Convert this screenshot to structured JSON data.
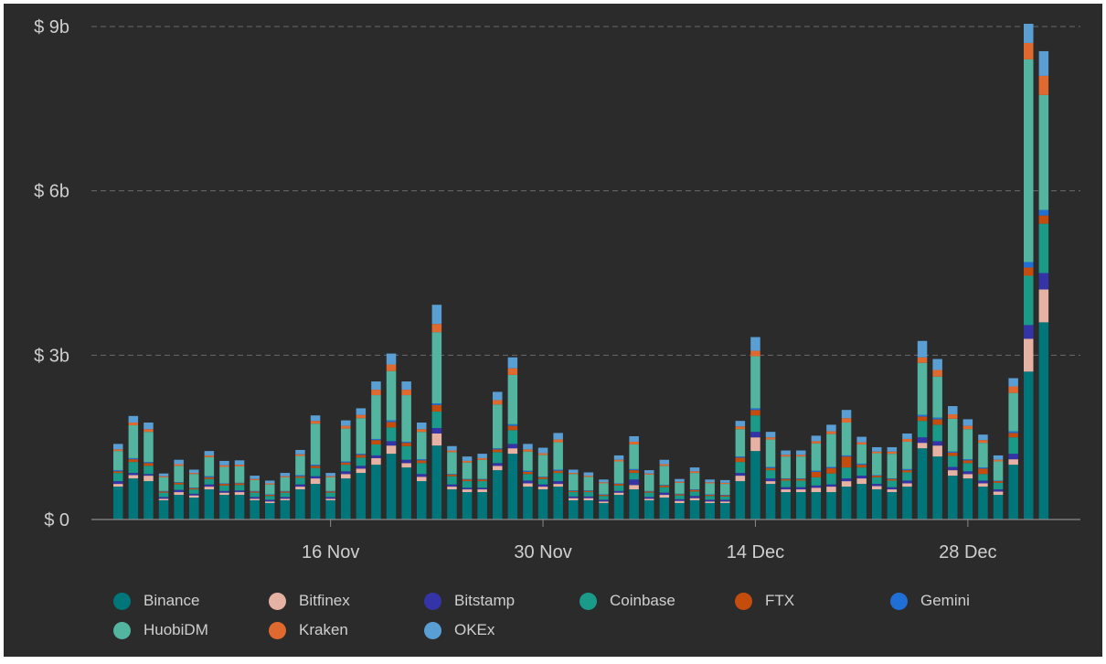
{
  "chart_data": {
    "type": "bar",
    "stacked": true,
    "title": "",
    "xlabel": "",
    "ylabel": "",
    "ylim": [
      0,
      9
    ],
    "y_ticks": [
      "$ 0",
      "$ 3b",
      "$ 6b",
      "$ 9b"
    ],
    "y_tick_values": [
      0,
      3,
      6,
      9
    ],
    "x_ticks": [
      {
        "label": "16 Nov",
        "day_index": 14
      },
      {
        "label": "30 Nov",
        "day_index": 28
      },
      {
        "label": "14 Dec",
        "day_index": 42
      },
      {
        "label": "28 Dec",
        "day_index": 56
      }
    ],
    "x_start": "2 Nov",
    "grid": true,
    "legend_position": "bottom",
    "series": [
      {
        "name": "Binance",
        "color": "#00767a",
        "values": [
          0.6,
          0.75,
          0.7,
          0.35,
          0.45,
          0.4,
          0.55,
          0.45,
          0.45,
          0.35,
          0.3,
          0.35,
          0.55,
          0.65,
          0.35,
          0.75,
          0.85,
          1.0,
          1.2,
          0.95,
          0.7,
          1.35,
          0.55,
          0.5,
          0.5,
          0.9,
          1.2,
          0.6,
          0.55,
          0.6,
          0.35,
          0.35,
          0.3,
          0.45,
          0.55,
          0.35,
          0.4,
          0.3,
          0.35,
          0.3,
          0.3,
          0.7,
          1.25,
          0.65,
          0.5,
          0.5,
          0.5,
          0.5,
          0.6,
          0.65,
          0.55,
          0.5,
          0.6,
          1.3,
          1.15,
          0.8,
          0.75,
          0.6,
          0.45,
          1.0,
          2.7,
          3.6
        ]
      },
      {
        "name": "Bitfinex",
        "color": "#e6b2a4",
        "values": [
          0.05,
          0.06,
          0.1,
          0.03,
          0.05,
          0.04,
          0.05,
          0.04,
          0.05,
          0.03,
          0.03,
          0.03,
          0.05,
          0.1,
          0.03,
          0.08,
          0.08,
          0.12,
          0.15,
          0.08,
          0.08,
          0.22,
          0.05,
          0.05,
          0.05,
          0.08,
          0.1,
          0.06,
          0.05,
          0.05,
          0.04,
          0.04,
          0.03,
          0.04,
          0.08,
          0.03,
          0.05,
          0.04,
          0.04,
          0.03,
          0.03,
          0.1,
          0.25,
          0.05,
          0.05,
          0.05,
          0.08,
          0.1,
          0.1,
          0.1,
          0.06,
          0.05,
          0.06,
          0.1,
          0.2,
          0.1,
          0.08,
          0.06,
          0.06,
          0.1,
          0.6,
          0.6
        ]
      },
      {
        "name": "Bitstamp",
        "color": "#3434a8",
        "values": [
          0.05,
          0.04,
          0.03,
          0.03,
          0.04,
          0.03,
          0.04,
          0.03,
          0.03,
          0.03,
          0.03,
          0.03,
          0.04,
          0.04,
          0.03,
          0.05,
          0.05,
          0.05,
          0.08,
          0.06,
          0.05,
          0.1,
          0.04,
          0.03,
          0.03,
          0.05,
          0.08,
          0.05,
          0.04,
          0.05,
          0.03,
          0.03,
          0.03,
          0.03,
          0.1,
          0.03,
          0.04,
          0.03,
          0.04,
          0.03,
          0.03,
          0.05,
          0.1,
          0.05,
          0.04,
          0.04,
          0.04,
          0.04,
          0.05,
          0.05,
          0.04,
          0.04,
          0.05,
          0.1,
          0.08,
          0.06,
          0.05,
          0.05,
          0.04,
          0.1,
          0.25,
          0.3
        ]
      },
      {
        "name": "Coinbase",
        "color": "#1a9b8a",
        "values": [
          0.15,
          0.2,
          0.15,
          0.08,
          0.1,
          0.08,
          0.1,
          0.1,
          0.1,
          0.08,
          0.07,
          0.08,
          0.12,
          0.15,
          0.08,
          0.12,
          0.15,
          0.2,
          0.25,
          0.25,
          0.2,
          0.3,
          0.15,
          0.12,
          0.12,
          0.2,
          0.25,
          0.12,
          0.1,
          0.15,
          0.08,
          0.08,
          0.07,
          0.1,
          0.12,
          0.08,
          0.1,
          0.07,
          0.08,
          0.07,
          0.06,
          0.2,
          0.3,
          0.15,
          0.12,
          0.12,
          0.15,
          0.2,
          0.2,
          0.15,
          0.12,
          0.12,
          0.15,
          0.3,
          0.3,
          0.2,
          0.15,
          0.12,
          0.12,
          0.3,
          0.9,
          0.9
        ]
      },
      {
        "name": "FTX",
        "color": "#c44d0e",
        "values": [
          0.03,
          0.05,
          0.05,
          0.02,
          0.03,
          0.02,
          0.03,
          0.03,
          0.03,
          0.02,
          0.02,
          0.02,
          0.03,
          0.04,
          0.02,
          0.04,
          0.05,
          0.08,
          0.1,
          0.06,
          0.05,
          0.12,
          0.03,
          0.03,
          0.03,
          0.05,
          0.08,
          0.04,
          0.03,
          0.04,
          0.02,
          0.02,
          0.02,
          0.03,
          0.05,
          0.02,
          0.03,
          0.02,
          0.03,
          0.02,
          0.02,
          0.08,
          0.1,
          0.04,
          0.03,
          0.03,
          0.1,
          0.1,
          0.2,
          0.05,
          0.03,
          0.03,
          0.04,
          0.08,
          0.1,
          0.06,
          0.05,
          0.1,
          0.03,
          0.08,
          0.15,
          0.15
        ]
      },
      {
        "name": "Gemini",
        "color": "#1f6fd6",
        "values": [
          0.02,
          0.02,
          0.02,
          0.01,
          0.01,
          0.01,
          0.02,
          0.01,
          0.01,
          0.01,
          0.01,
          0.01,
          0.02,
          0.02,
          0.01,
          0.02,
          0.02,
          0.02,
          0.03,
          0.02,
          0.02,
          0.03,
          0.01,
          0.01,
          0.01,
          0.02,
          0.03,
          0.02,
          0.01,
          0.02,
          0.01,
          0.01,
          0.01,
          0.01,
          0.02,
          0.01,
          0.01,
          0.01,
          0.01,
          0.01,
          0.01,
          0.02,
          0.03,
          0.02,
          0.01,
          0.01,
          0.02,
          0.02,
          0.02,
          0.02,
          0.01,
          0.01,
          0.02,
          0.03,
          0.03,
          0.02,
          0.02,
          0.02,
          0.01,
          0.03,
          0.1,
          0.1
        ]
      },
      {
        "name": "HuobiDM",
        "color": "#53b5a0",
        "values": [
          0.35,
          0.6,
          0.55,
          0.25,
          0.3,
          0.25,
          0.35,
          0.3,
          0.3,
          0.2,
          0.18,
          0.25,
          0.35,
          0.75,
          0.25,
          0.6,
          0.65,
          0.8,
          0.9,
          0.85,
          0.5,
          1.3,
          0.4,
          0.3,
          0.35,
          0.8,
          0.9,
          0.35,
          0.4,
          0.5,
          0.3,
          0.25,
          0.2,
          0.4,
          0.45,
          0.3,
          0.35,
          0.2,
          0.3,
          0.2,
          0.2,
          0.5,
          0.95,
          0.5,
          0.4,
          0.4,
          0.5,
          0.6,
          0.6,
          0.35,
          0.4,
          0.45,
          0.5,
          0.95,
          0.75,
          0.6,
          0.55,
          0.45,
          0.35,
          0.7,
          3.7,
          2.1
        ]
      },
      {
        "name": "Kraken",
        "color": "#e0692f",
        "values": [
          0.03,
          0.05,
          0.05,
          0.02,
          0.03,
          0.02,
          0.03,
          0.03,
          0.03,
          0.02,
          0.02,
          0.02,
          0.03,
          0.05,
          0.02,
          0.05,
          0.06,
          0.1,
          0.12,
          0.1,
          0.05,
          0.15,
          0.03,
          0.03,
          0.03,
          0.08,
          0.12,
          0.04,
          0.03,
          0.05,
          0.02,
          0.02,
          0.02,
          0.03,
          0.05,
          0.02,
          0.03,
          0.02,
          0.03,
          0.02,
          0.02,
          0.05,
          0.1,
          0.04,
          0.03,
          0.03,
          0.04,
          0.05,
          0.08,
          0.04,
          0.03,
          0.04,
          0.05,
          0.1,
          0.12,
          0.08,
          0.06,
          0.05,
          0.03,
          0.12,
          0.3,
          0.35
        ]
      },
      {
        "name": "OKEx",
        "color": "#5a9fd4",
        "values": [
          0.1,
          0.12,
          0.12,
          0.05,
          0.08,
          0.06,
          0.08,
          0.08,
          0.08,
          0.06,
          0.05,
          0.06,
          0.08,
          0.1,
          0.06,
          0.1,
          0.12,
          0.15,
          0.2,
          0.15,
          0.12,
          0.35,
          0.08,
          0.08,
          0.08,
          0.15,
          0.2,
          0.1,
          0.1,
          0.12,
          0.06,
          0.06,
          0.05,
          0.08,
          0.1,
          0.06,
          0.08,
          0.05,
          0.07,
          0.05,
          0.05,
          0.1,
          0.25,
          0.1,
          0.08,
          0.08,
          0.1,
          0.12,
          0.15,
          0.1,
          0.08,
          0.08,
          0.1,
          0.3,
          0.2,
          0.15,
          0.12,
          0.1,
          0.08,
          0.15,
          0.35,
          0.45
        ]
      }
    ]
  }
}
